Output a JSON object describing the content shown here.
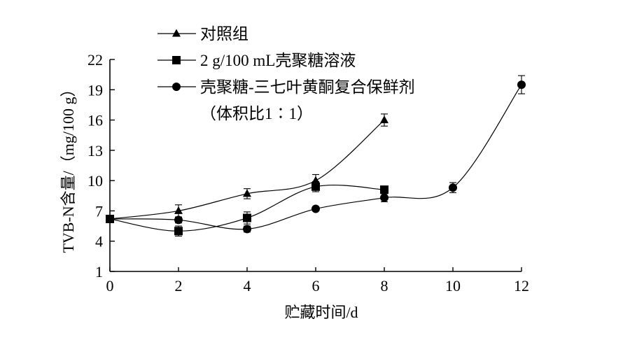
{
  "chart_data": {
    "type": "line",
    "xlabel": "贮藏时间/d",
    "ylabel": "TVB-N含量/（mg/100 g）",
    "xlim": [
      0,
      12
    ],
    "ylim": [
      1,
      22
    ],
    "xticks": [
      0,
      2,
      4,
      6,
      8,
      10,
      12
    ],
    "yticks": [
      1,
      4,
      7,
      10,
      13,
      16,
      19,
      22
    ],
    "grid": false,
    "legend_position": "top-left",
    "series": [
      {
        "name": "对照组",
        "marker": "triangle",
        "x": [
          0,
          2,
          4,
          6,
          8
        ],
        "y": [
          6.2,
          7.0,
          8.7,
          10.0,
          16.0
        ],
        "err": [
          0.3,
          0.6,
          0.5,
          0.6,
          0.6
        ]
      },
      {
        "name": "2 g/100 mL壳聚糖溶液",
        "marker": "square",
        "x": [
          0,
          2,
          4,
          6,
          8
        ],
        "y": [
          6.2,
          5.0,
          6.3,
          9.4,
          9.1
        ],
        "err": [
          0.3,
          0.5,
          0.6,
          0.5,
          0.3
        ]
      },
      {
        "name": "壳聚糖-三七叶黄酮复合保鲜剂",
        "name_line2": "（体积比1∶1）",
        "marker": "circle",
        "x": [
          0,
          2,
          4,
          6,
          8,
          10,
          12
        ],
        "y": [
          6.2,
          6.1,
          5.2,
          7.2,
          8.3,
          9.3,
          19.5
        ],
        "err": [
          0.3,
          0.3,
          0.3,
          0.2,
          0.4,
          0.5,
          0.9
        ]
      }
    ]
  }
}
